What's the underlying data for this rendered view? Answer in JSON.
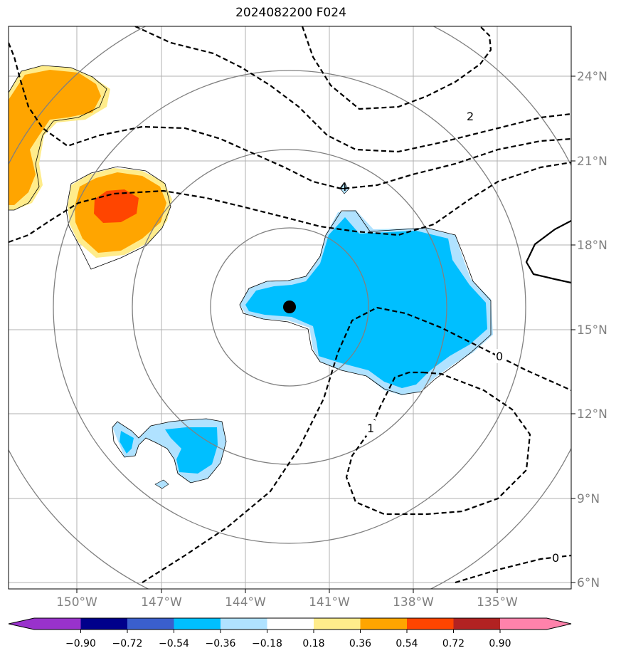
{
  "title": "2024082200 F024",
  "lat_labels": [
    "24°N",
    "21°N",
    "18°N",
    "15°N",
    "12°N",
    "9°N",
    "6°N"
  ],
  "lon_labels": [
    "150°W",
    "147°W",
    "144°W",
    "141°W",
    "138°W",
    "135°W"
  ],
  "contour_labels": [
    "2",
    "4",
    "0",
    "1",
    "0"
  ],
  "colorbar": {
    "ticks": [
      "−0.90",
      "−0.72",
      "−0.54",
      "−0.36",
      "−0.18",
      "0.18",
      "0.36",
      "0.54",
      "0.72",
      "0.90"
    ],
    "colors": [
      "#9932cc",
      "#00008b",
      "#3a5fcd",
      "#00bfff",
      "#b0e2ff",
      "#ffffff",
      "#ffec8b",
      "#ffa500",
      "#ff4500",
      "#b22222",
      "#ff82ab"
    ]
  },
  "center_marker": "storm-center"
}
